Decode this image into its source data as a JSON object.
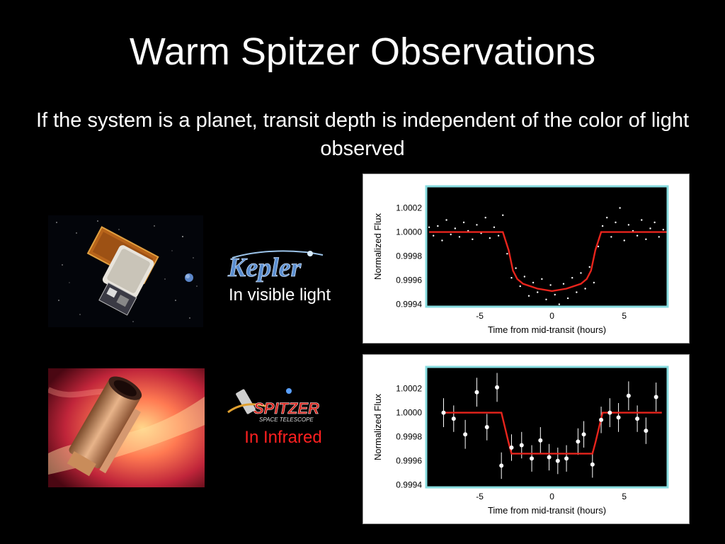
{
  "slide": {
    "title": "Warm Spitzer Observations",
    "subtitle": "If the system is a planet, transit depth is independent of the color of light observed"
  },
  "kepler": {
    "logo_text": "Kepler",
    "caption": "In visible light"
  },
  "spitzer": {
    "logo_text": "SPITZER",
    "logo_subtext": "SPACE TELESCOPE",
    "caption": "In Infrared",
    "caption_color": "#ff2020"
  },
  "chart_data": [
    {
      "type": "scatter",
      "xlabel": "Time from mid-transit (hours)",
      "ylabel": "Normalized Flux",
      "xlim": [
        -8.7,
        8
      ],
      "ylim": [
        0.99938,
        1.00038
      ],
      "xticks": [
        -5,
        0,
        5
      ],
      "xtick_labels": [
        "-5",
        "0",
        "5"
      ],
      "yticks": [
        0.9994,
        0.9996,
        0.9998,
        1.0,
        1.0002
      ],
      "ytick_labels": [
        "0.9994",
        "0.9996",
        "0.9998",
        "1.0000",
        "1.0002"
      ],
      "frame_color": "#88dde0",
      "model_color": "#e8241c",
      "model": {
        "x": [
          -8.5,
          -3.4,
          -3.0,
          -2.7,
          -2.4,
          -2.0,
          -1.0,
          0.0,
          1.0,
          2.0,
          2.4,
          2.7,
          3.0,
          3.4,
          8.0
        ],
        "y": [
          1.0,
          1.0,
          0.99985,
          0.99968,
          0.99961,
          0.99957,
          0.99953,
          0.99951,
          0.99953,
          0.99957,
          0.99961,
          0.99968,
          0.99985,
          1.0,
          1.0
        ]
      },
      "points": {
        "x": [
          -8.5,
          -8.2,
          -7.9,
          -7.6,
          -7.3,
          -7.0,
          -6.7,
          -6.4,
          -6.1,
          -5.8,
          -5.5,
          -5.2,
          -4.9,
          -4.6,
          -4.3,
          -4.0,
          -3.7,
          -3.4,
          -3.1,
          -2.8,
          -2.5,
          -2.2,
          -1.9,
          -1.6,
          -1.3,
          -1.0,
          -0.7,
          -0.4,
          -0.1,
          0.2,
          0.5,
          0.8,
          1.1,
          1.4,
          1.7,
          2.0,
          2.3,
          2.6,
          2.9,
          3.2,
          3.5,
          3.8,
          4.1,
          4.4,
          4.7,
          5.0,
          5.3,
          5.6,
          5.9,
          6.2,
          6.5,
          6.8,
          7.1,
          7.4,
          7.7
        ],
        "y": [
          1.00004,
          0.99997,
          1.00005,
          0.99993,
          1.0001,
          0.99998,
          1.00003,
          0.99996,
          1.00008,
          1.00001,
          0.99994,
          1.00006,
          0.99999,
          1.00012,
          0.99995,
          1.00004,
          0.99997,
          1.00014,
          0.99982,
          0.99962,
          0.9997,
          0.99955,
          0.99963,
          0.99947,
          0.99958,
          0.9995,
          0.99961,
          0.99944,
          0.99956,
          0.99948,
          0.9994,
          0.99957,
          0.99945,
          0.99962,
          0.9995,
          0.99966,
          0.99953,
          0.99971,
          0.99958,
          0.99988,
          1.00005,
          1.00012,
          0.99996,
          1.00008,
          1.0002,
          0.99993,
          1.00006,
          1.00001,
          0.99997,
          1.0001,
          0.99994,
          1.00003,
          1.00008,
          0.99996,
          1.00002
        ]
      }
    },
    {
      "type": "scatter",
      "xlabel": "Time from mid-transit (hours)",
      "ylabel": "Normalized Flux",
      "xlim": [
        -8.7,
        8
      ],
      "ylim": [
        0.99938,
        1.00038
      ],
      "xticks": [
        -5,
        0,
        5
      ],
      "xtick_labels": [
        "-5",
        "0",
        "5"
      ],
      "yticks": [
        0.9994,
        0.9996,
        0.9998,
        1.0,
        1.0002
      ],
      "ytick_labels": [
        "0.9994",
        "0.9996",
        "0.9998",
        "1.0000",
        "1.0002"
      ],
      "frame_color": "#88dde0",
      "model_color": "#e8241c",
      "model": {
        "x": [
          -7.6,
          -3.5,
          -3.0,
          -2.8,
          2.8,
          3.0,
          3.5,
          7.6
        ],
        "y": [
          1.0,
          1.0,
          0.99975,
          0.99966,
          0.99966,
          0.99975,
          1.0,
          1.0
        ]
      },
      "errorbars": {
        "x": [
          -7.5,
          -6.8,
          -6.0,
          -5.2,
          -4.5,
          -3.8,
          -3.5,
          -2.8,
          -2.1,
          -1.4,
          -0.8,
          -0.2,
          0.4,
          1.0,
          1.8,
          2.2,
          2.8,
          3.4,
          4.0,
          4.6,
          5.3,
          5.9,
          6.5,
          7.2
        ],
        "y": [
          1.0,
          0.99995,
          0.99982,
          1.00017,
          0.99988,
          1.00021,
          0.99956,
          0.99971,
          0.99973,
          0.99962,
          0.99977,
          0.99963,
          0.9996,
          0.99962,
          0.99976,
          0.99982,
          0.99957,
          0.99994,
          1.0,
          0.99996,
          1.00014,
          0.99995,
          0.99985,
          1.00013
        ],
        "err": [
          0.00012,
          0.00011,
          0.00012,
          0.00012,
          0.00011,
          0.00012,
          0.00011,
          0.00011,
          0.00011,
          0.00011,
          0.00011,
          0.00011,
          0.00011,
          0.00011,
          0.00011,
          0.00011,
          0.00011,
          0.00011,
          0.00012,
          0.00012,
          0.00012,
          0.00011,
          0.00011,
          0.00012
        ]
      }
    }
  ]
}
